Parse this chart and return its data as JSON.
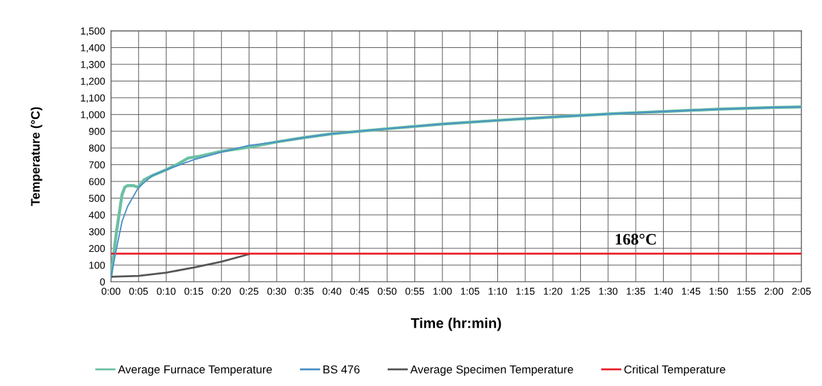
{
  "chart_data": {
    "type": "line",
    "xlabel": "Time (hr:min)",
    "ylabel": "Temperature (°C)",
    "xlim": [
      0,
      2.0833
    ],
    "ylim": [
      0,
      1500
    ],
    "xticks": [
      {
        "value": 0,
        "label": "0:00"
      },
      {
        "value": 0.0833,
        "label": "0:05"
      },
      {
        "value": 0.1667,
        "label": "0:10"
      },
      {
        "value": 0.25,
        "label": "0:15"
      },
      {
        "value": 0.3333,
        "label": "0:20"
      },
      {
        "value": 0.4167,
        "label": "0:25"
      },
      {
        "value": 0.5,
        "label": "0:30"
      },
      {
        "value": 0.5833,
        "label": "0:35"
      },
      {
        "value": 0.6667,
        "label": "0:40"
      },
      {
        "value": 0.75,
        "label": "0:45"
      },
      {
        "value": 0.8333,
        "label": "0:50"
      },
      {
        "value": 0.9167,
        "label": "0:55"
      },
      {
        "value": 1,
        "label": "1:00"
      },
      {
        "value": 1.0833,
        "label": "1:05"
      },
      {
        "value": 1.1667,
        "label": "1:10"
      },
      {
        "value": 1.25,
        "label": "1:15"
      },
      {
        "value": 1.3333,
        "label": "1:20"
      },
      {
        "value": 1.4167,
        "label": "1:25"
      },
      {
        "value": 1.5,
        "label": "1:30"
      },
      {
        "value": 1.5833,
        "label": "1:35"
      },
      {
        "value": 1.6667,
        "label": "1:40"
      },
      {
        "value": 1.75,
        "label": "1:45"
      },
      {
        "value": 1.8333,
        "label": "1:50"
      },
      {
        "value": 1.9167,
        "label": "1:55"
      },
      {
        "value": 2,
        "label": "2:00"
      },
      {
        "value": 2.0833,
        "label": "2:05"
      }
    ],
    "yticks": [
      0,
      100,
      200,
      300,
      400,
      500,
      600,
      700,
      800,
      900,
      {
        "value": 1000,
        "label": "1,000"
      },
      {
        "value": 1100,
        "label": "1,100"
      },
      {
        "value": 1200,
        "label": "1,200"
      },
      {
        "value": 1300,
        "label": "1,300"
      },
      {
        "value": 1400,
        "label": "1,400"
      },
      {
        "value": 1500,
        "label": "1,500"
      }
    ],
    "grid": true,
    "legend": "bottom",
    "marker": "none",
    "line_style": "solid",
    "series": [
      {
        "name": "Average Furnace Temperature",
        "color": "#6cc0a4",
        "x": [
          0,
          0.0167,
          0.0333,
          0.0417,
          0.05,
          0.0667,
          0.0833,
          0.1,
          0.125,
          0.1667,
          0.2,
          0.2333,
          0.2667,
          0.3333,
          0.4167,
          0.5,
          0.5833,
          0.6667,
          0.8333,
          1,
          1.1667,
          1.3333,
          1.5,
          1.6667,
          1.8333,
          2,
          2.0833
        ],
        "values": [
          30,
          300,
          520,
          565,
          575,
          575,
          565,
          610,
          635,
          670,
          702,
          740,
          750,
          780,
          805,
          836,
          862,
          885,
          915,
          943,
          965,
          985,
          1003,
          1018,
          1032,
          1042,
          1045
        ]
      },
      {
        "name": "BS 476",
        "color": "#4a8fc8",
        "x": [
          0,
          0.0167,
          0.0333,
          0.05,
          0.0833,
          0.125,
          0.1667,
          0.25,
          0.3333,
          0.4167,
          0.5,
          0.5833,
          0.6667,
          0.8333,
          1,
          1.1667,
          1.3333,
          1.5,
          1.6667,
          1.8333,
          2,
          2.0833
        ],
        "values": [
          30,
          200,
          360,
          450,
          565,
          635,
          670,
          730,
          775,
          815,
          836,
          862,
          885,
          915,
          943,
          965,
          985,
          1003,
          1018,
          1032,
          1042,
          1045
        ]
      },
      {
        "name": "Average Specimen Temperature",
        "color": "#555555",
        "x": [
          0,
          0.0833,
          0.1667,
          0.25,
          0.3333,
          0.4167
        ],
        "values": [
          30,
          35,
          55,
          85,
          120,
          165
        ]
      },
      {
        "name": "Critical Temperature",
        "color": "#e8202a",
        "x": [
          0,
          2.0833
        ],
        "values": [
          168,
          168
        ]
      }
    ],
    "annotations": [
      {
        "text": "168°C",
        "x": 1.5833,
        "y": 168
      }
    ]
  }
}
